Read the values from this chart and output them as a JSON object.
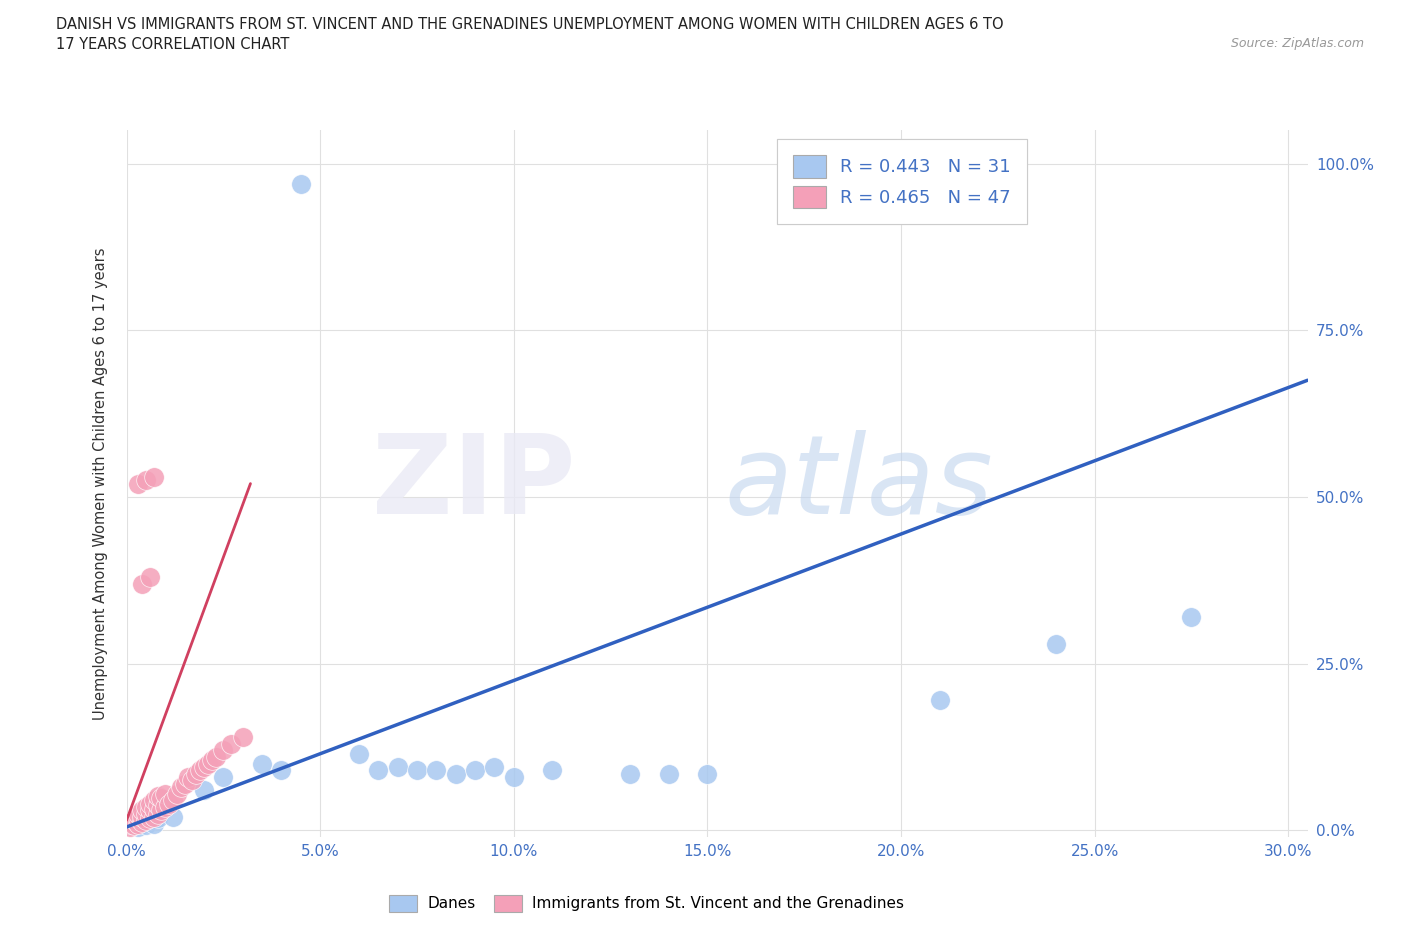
{
  "title_line1": "DANISH VS IMMIGRANTS FROM ST. VINCENT AND THE GRENADINES UNEMPLOYMENT AMONG WOMEN WITH CHILDREN AGES 6 TO",
  "title_line2": "17 YEARS CORRELATION CHART",
  "source": "Source: ZipAtlas.com",
  "ylabel_label": "Unemployment Among Women with Children Ages 6 to 17 years",
  "x_tick_labels": [
    "0.0%",
    "5.0%",
    "10.0%",
    "15.0%",
    "20.0%",
    "25.0%",
    "30.0%"
  ],
  "y_tick_labels_right": [
    "0.0%",
    "25.0%",
    "50.0%",
    "75.0%",
    "100.0%"
  ],
  "x_ticks": [
    0.0,
    0.05,
    0.1,
    0.15,
    0.2,
    0.25,
    0.3
  ],
  "y_ticks": [
    0.0,
    0.25,
    0.5,
    0.75,
    1.0
  ],
  "xlim": [
    0.0,
    0.305
  ],
  "ylim": [
    -0.01,
    1.05
  ],
  "danes_color": "#a8c8f0",
  "immigrants_color": "#f4a0b8",
  "danes_line_color": "#3060c0",
  "immigrants_line_color": "#d04060",
  "legend_r1": "R = 0.443",
  "legend_n1": "N = 31",
  "legend_r2": "R = 0.465",
  "legend_n2": "N = 47",
  "legend1_label": "Danes",
  "legend2_label": "Immigrants from St. Vincent and the Grenadines",
  "danes_scatter": [
    [
      0.001,
      0.008
    ],
    [
      0.002,
      0.01
    ],
    [
      0.003,
      0.005
    ],
    [
      0.004,
      0.012
    ],
    [
      0.005,
      0.008
    ],
    [
      0.006,
      0.015
    ],
    [
      0.007,
      0.01
    ],
    [
      0.008,
      0.018
    ],
    [
      0.01,
      0.035
    ],
    [
      0.012,
      0.02
    ],
    [
      0.02,
      0.06
    ],
    [
      0.025,
      0.08
    ],
    [
      0.035,
      0.1
    ],
    [
      0.04,
      0.09
    ],
    [
      0.06,
      0.115
    ],
    [
      0.065,
      0.09
    ],
    [
      0.07,
      0.095
    ],
    [
      0.075,
      0.09
    ],
    [
      0.08,
      0.09
    ],
    [
      0.085,
      0.085
    ],
    [
      0.09,
      0.09
    ],
    [
      0.095,
      0.095
    ],
    [
      0.1,
      0.08
    ],
    [
      0.11,
      0.09
    ],
    [
      0.13,
      0.085
    ],
    [
      0.14,
      0.085
    ],
    [
      0.15,
      0.085
    ],
    [
      0.21,
      0.195
    ],
    [
      0.24,
      0.28
    ],
    [
      0.275,
      0.32
    ],
    [
      0.045,
      0.97
    ]
  ],
  "immigrants_scatter": [
    [
      0.001,
      0.005
    ],
    [
      0.001,
      0.01
    ],
    [
      0.002,
      0.008
    ],
    [
      0.002,
      0.015
    ],
    [
      0.003,
      0.01
    ],
    [
      0.003,
      0.018
    ],
    [
      0.003,
      0.025
    ],
    [
      0.004,
      0.012
    ],
    [
      0.004,
      0.02
    ],
    [
      0.004,
      0.03
    ],
    [
      0.005,
      0.015
    ],
    [
      0.005,
      0.025
    ],
    [
      0.005,
      0.035
    ],
    [
      0.006,
      0.018
    ],
    [
      0.006,
      0.03
    ],
    [
      0.006,
      0.04
    ],
    [
      0.007,
      0.02
    ],
    [
      0.007,
      0.032
    ],
    [
      0.007,
      0.045
    ],
    [
      0.008,
      0.025
    ],
    [
      0.008,
      0.038
    ],
    [
      0.008,
      0.052
    ],
    [
      0.009,
      0.03
    ],
    [
      0.009,
      0.048
    ],
    [
      0.01,
      0.035
    ],
    [
      0.01,
      0.055
    ],
    [
      0.011,
      0.04
    ],
    [
      0.012,
      0.045
    ],
    [
      0.013,
      0.055
    ],
    [
      0.014,
      0.065
    ],
    [
      0.015,
      0.07
    ],
    [
      0.016,
      0.08
    ],
    [
      0.017,
      0.075
    ],
    [
      0.018,
      0.085
    ],
    [
      0.019,
      0.09
    ],
    [
      0.02,
      0.095
    ],
    [
      0.021,
      0.1
    ],
    [
      0.022,
      0.105
    ],
    [
      0.023,
      0.11
    ],
    [
      0.025,
      0.12
    ],
    [
      0.027,
      0.13
    ],
    [
      0.03,
      0.14
    ],
    [
      0.003,
      0.52
    ],
    [
      0.005,
      0.525
    ],
    [
      0.007,
      0.53
    ],
    [
      0.004,
      0.37
    ],
    [
      0.006,
      0.38
    ]
  ],
  "danes_trendline_x": [
    0.0,
    0.305
  ],
  "danes_trendline_y": [
    0.005,
    0.675
  ],
  "immigrants_trendline_x": [
    0.0,
    0.032
  ],
  "immigrants_trendline_y": [
    0.015,
    0.52
  ]
}
